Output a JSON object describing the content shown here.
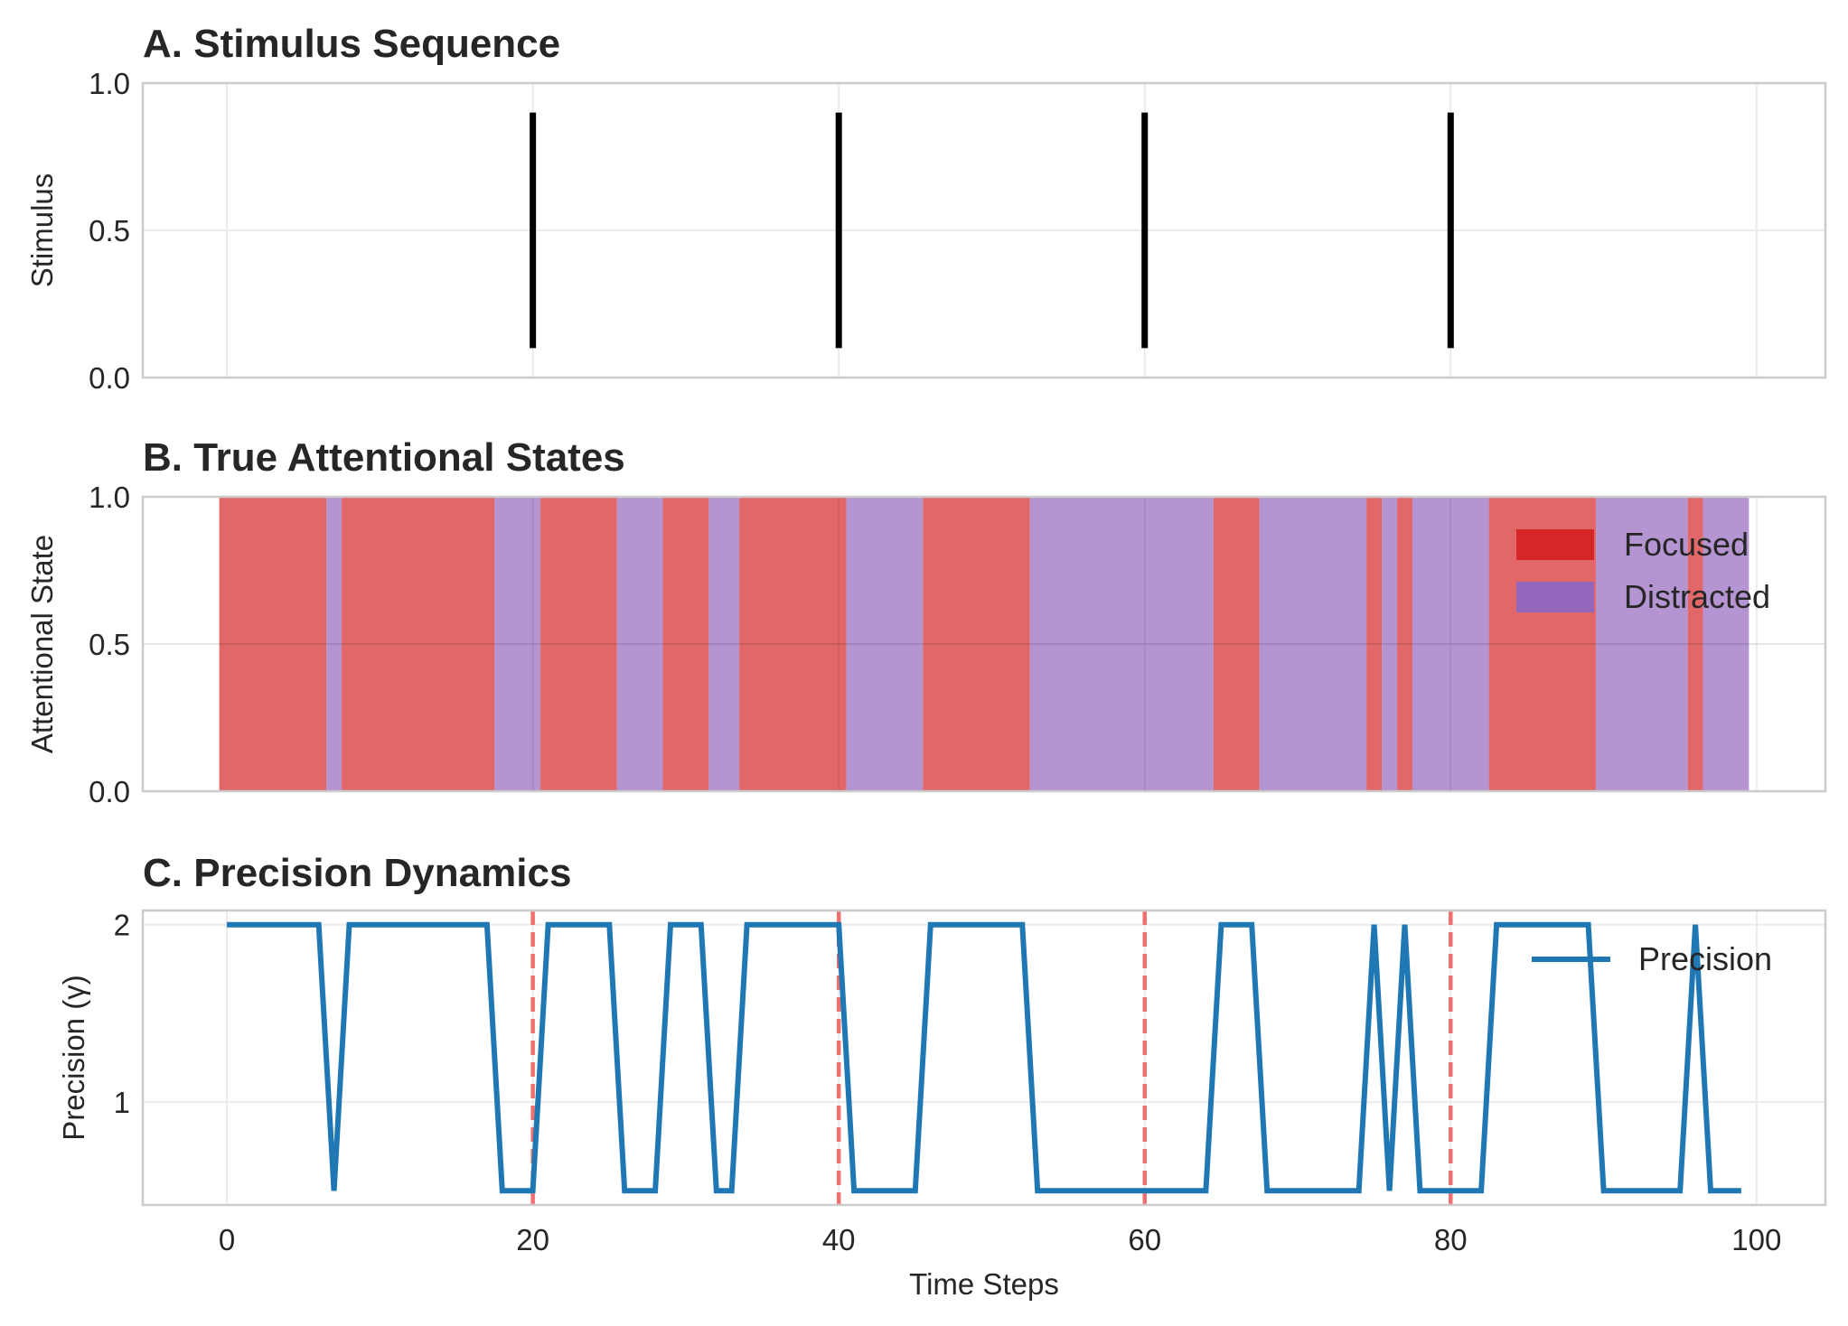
{
  "chart_data": [
    {
      "type": "stem",
      "title": "A. Stimulus Sequence",
      "xlabel": "",
      "ylabel": "Stimulus",
      "xlim": [
        -5.5,
        104.5
      ],
      "ylim": [
        0,
        1
      ],
      "yticks": [
        "0.0",
        "0.5",
        "1.0"
      ],
      "grid": true,
      "stimulus_times": [
        20,
        40,
        60,
        80
      ],
      "stimulus_extent": [
        0.1,
        0.9
      ],
      "colors": {
        "marker": "#000000"
      }
    },
    {
      "type": "area",
      "title": "B. True Attentional States",
      "xlabel": "",
      "ylabel": "Attentional State",
      "xlim": [
        -5.5,
        104.5
      ],
      "ylim": [
        0,
        1
      ],
      "yticks": [
        "0.0",
        "0.5",
        "1.0"
      ],
      "grid": true,
      "legend": "upper-right",
      "states": [
        "Focused",
        "Distracted"
      ],
      "series": [
        {
          "name": "Focused",
          "color": "#d62728"
        },
        {
          "name": "Distracted",
          "color": "#9467bd"
        }
      ],
      "state_sequence": [
        0,
        0,
        0,
        0,
        0,
        0,
        0,
        1,
        0,
        0,
        0,
        0,
        0,
        0,
        0,
        0,
        0,
        0,
        1,
        1,
        1,
        0,
        0,
        0,
        0,
        0,
        1,
        1,
        1,
        0,
        0,
        0,
        1,
        1,
        0,
        0,
        0,
        0,
        0,
        0,
        0,
        1,
        1,
        1,
        1,
        1,
        0,
        0,
        0,
        0,
        0,
        0,
        0,
        1,
        1,
        1,
        1,
        1,
        1,
        1,
        1,
        1,
        1,
        1,
        1,
        0,
        0,
        0,
        1,
        1,
        1,
        1,
        1,
        1,
        1,
        0,
        1,
        0,
        1,
        1,
        1,
        1,
        1,
        0,
        0,
        0,
        0,
        0,
        0,
        0,
        1,
        1,
        1,
        1,
        1,
        1,
        0,
        1,
        1,
        1
      ]
    },
    {
      "type": "line",
      "title": "C. Precision Dynamics",
      "xlabel": "Time Steps",
      "ylabel": "Precision (γ)",
      "xlim": [
        -5.5,
        104.5
      ],
      "ylim": [
        0.42,
        2.08
      ],
      "xticks": [
        0,
        20,
        40,
        60,
        80,
        100
      ],
      "yticks": [
        1,
        2
      ],
      "grid": true,
      "legend": "upper-right",
      "series": [
        {
          "name": "Precision",
          "color": "#1f77b4",
          "x": [
            0,
            1,
            2,
            3,
            4,
            5,
            6,
            7,
            8,
            9,
            10,
            11,
            12,
            13,
            14,
            15,
            16,
            17,
            18,
            19,
            20,
            21,
            22,
            23,
            24,
            25,
            26,
            27,
            28,
            29,
            30,
            31,
            32,
            33,
            34,
            35,
            36,
            37,
            38,
            39,
            40,
            41,
            42,
            43,
            44,
            45,
            46,
            47,
            48,
            49,
            50,
            51,
            52,
            53,
            54,
            55,
            56,
            57,
            58,
            59,
            60,
            61,
            62,
            63,
            64,
            65,
            66,
            67,
            68,
            69,
            70,
            71,
            72,
            73,
            74,
            75,
            76,
            77,
            78,
            79,
            80,
            81,
            82,
            83,
            84,
            85,
            86,
            87,
            88,
            89,
            90,
            91,
            92,
            93,
            94,
            95,
            96,
            97,
            98,
            99
          ],
          "values": [
            2,
            2,
            2,
            2,
            2,
            2,
            2,
            0.5,
            2,
            2,
            2,
            2,
            2,
            2,
            2,
            2,
            2,
            2,
            0.5,
            0.5,
            0.5,
            2,
            2,
            2,
            2,
            2,
            0.5,
            0.5,
            0.5,
            2,
            2,
            2,
            0.5,
            0.5,
            2,
            2,
            2,
            2,
            2,
            2,
            2,
            0.5,
            0.5,
            0.5,
            0.5,
            0.5,
            2,
            2,
            2,
            2,
            2,
            2,
            2,
            0.5,
            0.5,
            0.5,
            0.5,
            0.5,
            0.5,
            0.5,
            0.5,
            0.5,
            0.5,
            0.5,
            0.5,
            2,
            2,
            2,
            0.5,
            0.5,
            0.5,
            0.5,
            0.5,
            0.5,
            0.5,
            2,
            0.5,
            2,
            0.5,
            0.5,
            0.5,
            0.5,
            0.5,
            2,
            2,
            2,
            2,
            2,
            2,
            2,
            0.5,
            0.5,
            0.5,
            0.5,
            0.5,
            0.5,
            2,
            0.5,
            0.5,
            0.5
          ]
        }
      ],
      "vlines": [
        20,
        40,
        60,
        80
      ],
      "vline_color": "#f07070"
    }
  ]
}
